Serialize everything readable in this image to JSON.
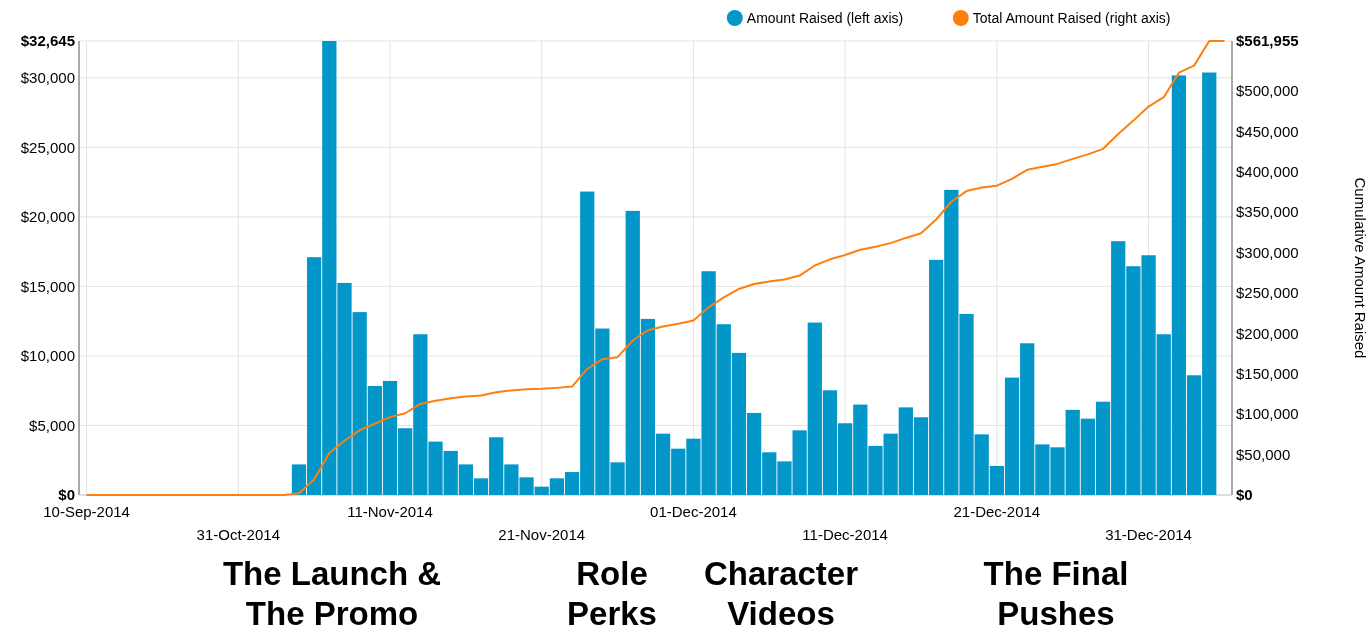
{
  "chart_data": {
    "type": "bar",
    "categories": [
      "10-Sep-2014",
      null,
      null,
      null,
      null,
      null,
      null,
      null,
      null,
      null,
      "31-Oct-2014",
      null,
      null,
      null,
      null,
      null,
      null,
      null,
      null,
      null,
      "11-Nov-2014",
      null,
      null,
      null,
      null,
      null,
      null,
      null,
      null,
      null,
      "21-Nov-2014",
      null,
      null,
      null,
      null,
      null,
      null,
      null,
      null,
      null,
      "01-Dec-2014",
      null,
      null,
      null,
      null,
      null,
      null,
      null,
      null,
      null,
      "11-Dec-2014",
      null,
      null,
      null,
      null,
      null,
      null,
      null,
      null,
      null,
      "21-Dec-2014",
      null,
      null,
      null,
      null,
      null,
      null,
      null,
      null,
      null,
      "31-Dec-2014",
      null,
      null,
      null,
      null,
      null
    ],
    "series": [
      {
        "name": "Amount Raised (left axis)",
        "color": "#0396c8",
        "values": [
          0,
          0,
          0,
          0,
          0,
          0,
          0,
          0,
          0,
          0,
          0,
          0,
          0,
          0,
          2200,
          17100,
          32645,
          15250,
          13150,
          7840,
          8200,
          4800,
          11560,
          3840,
          3170,
          2200,
          1200,
          4150,
          2200,
          1270,
          600,
          1200,
          1650,
          21820,
          11970,
          2350,
          20430,
          12660,
          4410,
          3330,
          4050,
          16090,
          12280,
          10220,
          5900,
          3070,
          2420,
          4650,
          12400,
          7530,
          5160,
          6500,
          3530,
          4410,
          6300,
          5590,
          16910,
          21940,
          13020,
          4360,
          2090,
          8440,
          10910,
          3640,
          3430,
          6120,
          5490,
          6710,
          18250,
          16450,
          17240,
          11560,
          30170,
          8610,
          30380,
          0
        ]
      },
      {
        "name": "Total Amount Raised (right axis)",
        "type": "line",
        "axis": "y2",
        "color": "#ff7f0e",
        "values": [
          0,
          0,
          0,
          0,
          0,
          0,
          0,
          0,
          0,
          0,
          0,
          0,
          0,
          0,
          2200,
          19300,
          51900,
          67200,
          80300,
          88200,
          96400,
          101200,
          112700,
          116600,
          119800,
          122000,
          123200,
          127300,
          129500,
          130800,
          131400,
          132600,
          134200,
          156000,
          168100,
          170600,
          191200,
          203900,
          208500,
          211900,
          216100,
          232300,
          244700,
          255000,
          261100,
          264300,
          266800,
          271600,
          284100,
          291700,
          297000,
          303600,
          307300,
          311800,
          318200,
          323900,
          341000,
          363000,
          376200,
          380700,
          382900,
          391400,
          402500,
          406200,
          409800,
          416000,
          421600,
          428500,
          446800,
          463400,
          480800,
          492400,
          522700,
          531500,
          561955,
          561955
        ]
      }
    ],
    "ylim": [
      0,
      32645
    ],
    "yticks": [
      {
        "value": 0,
        "label": "$0"
      },
      {
        "value": 5000,
        "label": "$5,000"
      },
      {
        "value": 10000,
        "label": "$10,000"
      },
      {
        "value": 15000,
        "label": "$15,000"
      },
      {
        "value": 20000,
        "label": "$20,000"
      },
      {
        "value": 25000,
        "label": "$25,000"
      },
      {
        "value": 30000,
        "label": "$30,000"
      },
      {
        "value": 32645,
        "label": "$32,645"
      }
    ],
    "y2lim": [
      0,
      561955
    ],
    "y2ticks": [
      {
        "value": 0,
        "label": "$0"
      },
      {
        "value": 50000,
        "label": "$50,000"
      },
      {
        "value": 100000,
        "label": "$100,000"
      },
      {
        "value": 150000,
        "label": "$150,000"
      },
      {
        "value": 200000,
        "label": "$200,000"
      },
      {
        "value": 250000,
        "label": "$250,000"
      },
      {
        "value": 300000,
        "label": "$300,000"
      },
      {
        "value": 350000,
        "label": "$350,000"
      },
      {
        "value": 400000,
        "label": "$400,000"
      },
      {
        "value": 450000,
        "label": "$450,000"
      },
      {
        "value": 500000,
        "label": "$500,000"
      },
      {
        "value": 561955,
        "label": "$561,955"
      }
    ],
    "y2label": "Cumulative Amount Raised",
    "grid": true,
    "legend": "top right",
    "annotations": [
      "The Launch &\nThe Promo",
      "Role\nPerks",
      "Character\nVideos",
      "The Final\nPushes"
    ]
  }
}
